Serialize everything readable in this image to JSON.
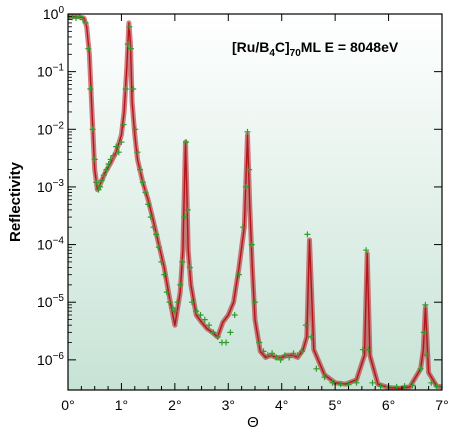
{
  "chart_data": {
    "type": "scatter",
    "annotation": {
      "prefix": "[Ru/B",
      "sub1": "4",
      "mid": "C]",
      "sub2": "70",
      "suffix": "ML  E = 8048eV"
    },
    "ylabel": "Reflectivity",
    "xlabel": "Θ",
    "xlim": [
      0,
      7
    ],
    "ylim": [
      3e-07,
      1
    ],
    "yscale": "log",
    "xticks": [
      {
        "v": 0,
        "label": "0°"
      },
      {
        "v": 1,
        "label": "1°"
      },
      {
        "v": 2,
        "label": "2°"
      },
      {
        "v": 3,
        "label": "3°"
      },
      {
        "v": 4,
        "label": "4°"
      },
      {
        "v": 5,
        "label": "5°"
      },
      {
        "v": 6,
        "label": "6°"
      },
      {
        "v": 7,
        "label": "7°"
      }
    ],
    "yticks": [
      {
        "v": 1,
        "base": "10",
        "exp": "0"
      },
      {
        "v": 0.1,
        "base": "10",
        "exp": "−1"
      },
      {
        "v": 0.01,
        "base": "10",
        "exp": "−2"
      },
      {
        "v": 0.001,
        "base": "10",
        "exp": "−3"
      },
      {
        "v": 0.0001,
        "base": "10",
        "exp": "−4"
      },
      {
        "v": 1e-05,
        "base": "10",
        "exp": "−5"
      },
      {
        "v": 1e-06,
        "base": "10",
        "exp": "−6"
      }
    ],
    "grid": false,
    "colors": {
      "background_top": "#ffffff",
      "background_bottom": "#c7e3d6",
      "fit_line": "#b3151c",
      "measured_markers": "#2e9d2a"
    },
    "series": [
      {
        "kind": "fit",
        "x": [
          0.0,
          0.1,
          0.2,
          0.3,
          0.35,
          0.4,
          0.45,
          0.5,
          0.55,
          0.6,
          0.65,
          0.7,
          0.8,
          0.9,
          1.0,
          1.05,
          1.1,
          1.14,
          1.17,
          1.2,
          1.25,
          1.3,
          1.4,
          1.5,
          1.6,
          1.7,
          1.8,
          1.9,
          2.0,
          2.1,
          2.15,
          2.2,
          2.22,
          2.25,
          2.3,
          2.4,
          2.5,
          2.6,
          2.7,
          2.8,
          2.9,
          3.0,
          3.1,
          3.2,
          3.3,
          3.36,
          3.4,
          3.45,
          3.5,
          3.6,
          3.7,
          3.8,
          3.9,
          4.0,
          4.1,
          4.2,
          4.3,
          4.4,
          4.47,
          4.52,
          4.6,
          4.8,
          5.0,
          5.2,
          5.4,
          5.55,
          5.6,
          5.65,
          5.8,
          6.0,
          6.2,
          6.4,
          6.6,
          6.65,
          6.69,
          6.75,
          6.9,
          7.0
        ],
        "y": [
          0.9,
          0.9,
          0.9,
          0.85,
          0.6,
          0.2,
          0.02,
          0.002,
          0.0009,
          0.0011,
          0.0014,
          0.0018,
          0.0026,
          0.004,
          0.008,
          0.02,
          0.12,
          0.7,
          0.3,
          0.03,
          0.008,
          0.003,
          0.0012,
          0.0006,
          0.00025,
          0.0001,
          4e-05,
          1.2e-05,
          4e-06,
          1.5e-05,
          8e-05,
          0.006,
          0.0012,
          8e-05,
          2e-05,
          6e-06,
          4.5e-06,
          3.5e-06,
          3e-06,
          2.5e-06,
          4.5e-06,
          6e-06,
          1e-05,
          4e-05,
          0.0002,
          0.008,
          0.0005,
          4e-05,
          5e-06,
          1.4e-06,
          1.1e-06,
          1.2e-06,
          1.1e-06,
          1.1e-06,
          1.2e-06,
          1.2e-06,
          1.1e-06,
          1.5e-06,
          2.5e-06,
          0.00012,
          1.5e-06,
          5.5e-07,
          4e-07,
          3.8e-07,
          4.5e-07,
          1.2e-06,
          7e-05,
          1.2e-06,
          3.8e-07,
          3.3e-07,
          3.2e-07,
          3.4e-07,
          7e-07,
          1.5e-06,
          8e-06,
          6e-07,
          3.5e-07,
          3.4e-07
        ]
      },
      {
        "kind": "measured",
        "x": [
          0.02,
          0.08,
          0.15,
          0.22,
          0.28,
          0.33,
          0.38,
          0.42,
          0.46,
          0.5,
          0.53,
          0.57,
          0.6,
          0.63,
          0.67,
          0.72,
          0.76,
          0.8,
          0.85,
          0.9,
          0.95,
          1.0,
          1.04,
          1.08,
          1.12,
          1.15,
          1.18,
          1.22,
          1.26,
          1.3,
          1.35,
          1.4,
          1.45,
          1.5,
          1.55,
          1.6,
          1.65,
          1.7,
          1.75,
          1.8,
          1.85,
          1.9,
          1.95,
          2.0,
          2.05,
          2.1,
          2.14,
          2.18,
          2.21,
          2.24,
          2.28,
          2.32,
          2.4,
          2.48,
          2.56,
          2.64,
          2.72,
          2.8,
          2.88,
          2.96,
          3.04,
          3.12,
          3.2,
          3.28,
          3.33,
          3.36,
          3.39,
          3.44,
          3.5,
          3.58,
          3.66,
          3.74,
          3.82,
          3.9,
          3.98,
          4.06,
          4.14,
          4.22,
          4.3,
          4.38,
          4.45,
          4.48,
          4.55,
          4.65,
          4.8,
          4.95,
          5.1,
          5.25,
          5.4,
          5.52,
          5.58,
          5.62,
          5.7,
          5.85,
          6.0,
          6.15,
          6.3,
          6.45,
          6.6,
          6.66,
          6.69,
          6.72,
          6.8,
          6.9,
          7.0
        ],
        "y": [
          0.9,
          0.88,
          0.85,
          0.9,
          0.8,
          0.7,
          0.25,
          0.05,
          0.01,
          0.003,
          0.0012,
          0.0009,
          0.001,
          0.0013,
          0.0016,
          0.002,
          0.0025,
          0.003,
          0.0035,
          0.005,
          0.004,
          0.006,
          0.012,
          0.05,
          0.3,
          0.6,
          0.25,
          0.05,
          0.01,
          0.004,
          0.002,
          0.0012,
          0.0008,
          0.0005,
          0.0003,
          0.0002,
          0.00015,
          9e-05,
          5e-05,
          3e-05,
          1.5e-05,
          1e-05,
          8e-06,
          7e-06,
          1e-05,
          2e-05,
          5e-05,
          0.0003,
          0.006,
          0.0004,
          4e-05,
          1e-05,
          7e-06,
          6e-06,
          5e-06,
          4e-06,
          3e-06,
          2.5e-06,
          2e-06,
          2e-06,
          3e-06,
          6e-06,
          3e-05,
          0.0002,
          0.001,
          0.009,
          0.002,
          0.0001,
          1e-05,
          2e-06,
          1.4e-06,
          1.2e-06,
          1.3e-06,
          1.1e-06,
          1e-06,
          1.2e-06,
          1.1e-06,
          1.3e-06,
          1.2e-06,
          1.4e-06,
          4e-06,
          0.00015,
          2.5e-06,
          7e-07,
          5e-07,
          4e-07,
          3.8e-07,
          3.7e-07,
          4e-07,
          1.5e-06,
          8e-05,
          1.5e-06,
          4e-07,
          3.5e-07,
          3.4e-07,
          3.4e-07,
          3.5e-07,
          3.6e-07,
          7e-07,
          3e-06,
          9e-06,
          1.2e-06,
          4e-07,
          3.5e-07,
          3.5e-07
        ]
      }
    ]
  }
}
